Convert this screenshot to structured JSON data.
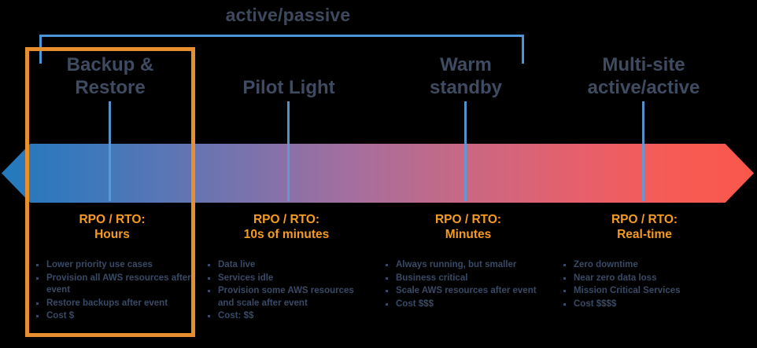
{
  "title": {
    "bracket_label": "active/passive"
  },
  "colors": {
    "bracket_blue": "#4E94D8",
    "connector_blue": "#5C9CD9",
    "heading_navy": "#3E4B61",
    "bullet_navy": "#3A4A66",
    "rpo_orange": "#F59B21",
    "highlight_orange": "#E78E2F",
    "arrow_gradient_start": "#2279BD",
    "arrow_gradient_end": "#FA574B"
  },
  "strategies": [
    {
      "name_line1": "Backup &",
      "name_line2": "Restore",
      "rpo_label": "RPO / RTO:",
      "rpo_value": "Hours",
      "bullets": [
        "Lower priority use cases",
        "Provision all AWS resources after event",
        "Restore backups after event",
        "Cost $"
      ]
    },
    {
      "name_line1": "Pilot Light",
      "name_line2": "",
      "rpo_label": "RPO / RTO:",
      "rpo_value": "10s of minutes",
      "bullets": [
        "Data live",
        "Services idle",
        "Provision some AWS resources and scale after event",
        "Cost: $$"
      ]
    },
    {
      "name_line1": "Warm",
      "name_line2": "standby",
      "rpo_label": "RPO / RTO:",
      "rpo_value": "Minutes",
      "bullets": [
        "Always running, but smaller",
        "Business critical",
        "Scale AWS resources after event",
        "Cost $$$"
      ]
    },
    {
      "name_line1": "Multi-site",
      "name_line2": "active/active",
      "rpo_label": "RPO / RTO:",
      "rpo_value": "Real-time",
      "bullets": [
        "Zero downtime",
        "Near zero data loss",
        "Mission Critical Services",
        "Cost $$$$"
      ]
    }
  ]
}
